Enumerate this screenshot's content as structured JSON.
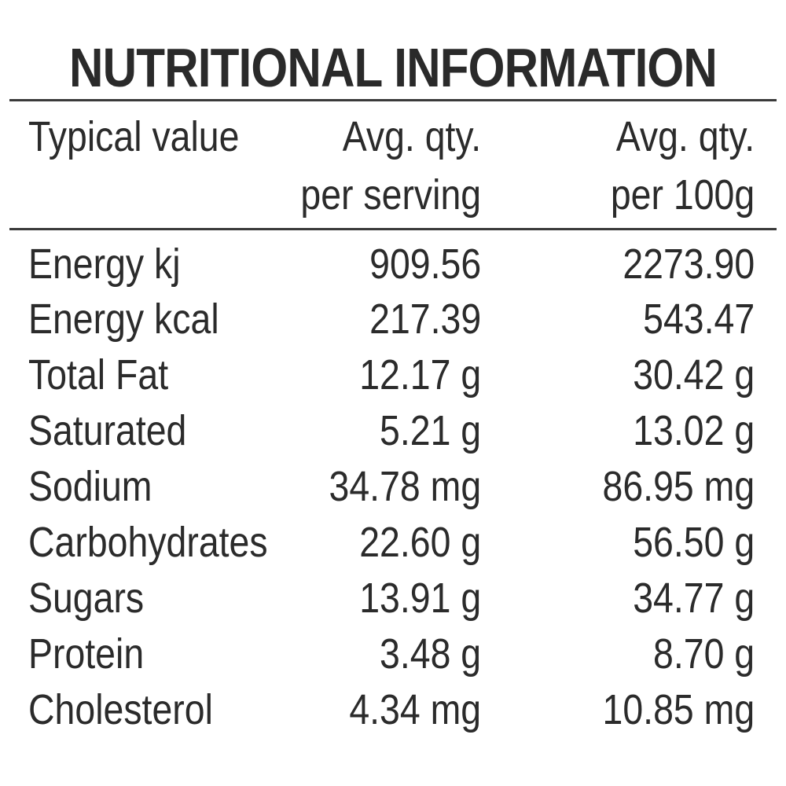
{
  "title": "NUTRITIONAL INFORMATION",
  "header": {
    "col1": "Typical value",
    "col2_line1": "Avg. qty.",
    "col2_line2": "per serving",
    "col3_line1": "Avg. qty.",
    "col3_line2": "per 100g"
  },
  "rows": [
    {
      "label": "Energy kj",
      "per_serving": "909.56",
      "per_100g": "2273.90"
    },
    {
      "label": "Energy kcal",
      "per_serving": "217.39",
      "per_100g": "543.47"
    },
    {
      "label": "Total Fat",
      "per_serving": "12.17 g",
      "per_100g": "30.42 g"
    },
    {
      "label": "Saturated",
      "per_serving": "5.21 g",
      "per_100g": "13.02 g"
    },
    {
      "label": "Sodium",
      "per_serving": "34.78 mg",
      "per_100g": "86.95 mg"
    },
    {
      "label": "Carbohydrates",
      "per_serving": "22.60 g",
      "per_100g": "56.50 g"
    },
    {
      "label": "Sugars",
      "per_serving": "13.91 g",
      "per_100g": "34.77 g"
    },
    {
      "label": "Protein",
      "per_serving": "3.48 g",
      "per_100g": "8.70 g"
    },
    {
      "label": "Cholesterol",
      "per_serving": "4.34 mg",
      "per_100g": "10.85 mg"
    }
  ]
}
